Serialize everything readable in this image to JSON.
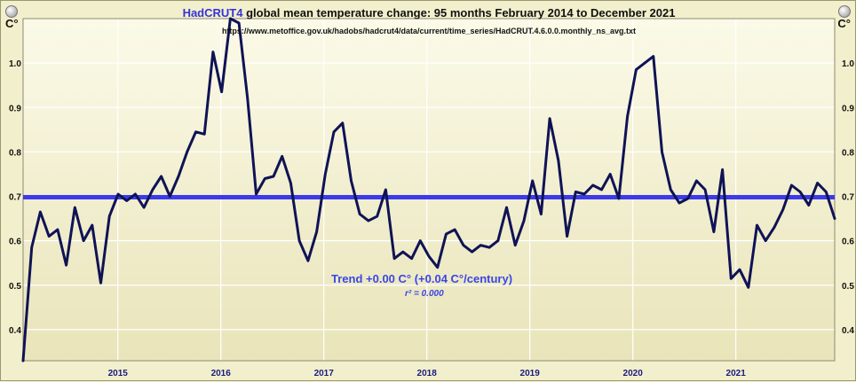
{
  "chart_data": {
    "type": "line",
    "title_brand": "HadCRUT4",
    "title_rest": "global mean temperature change: 95 months February 2014 to December 2021",
    "source_url": "https://www.metoffice.gov.uk/hadobs/hadcrut4/data/current/time_series/HadCRUT.4.6.0.0.monthly_ns_avg.txt",
    "unit_label": "C°",
    "trend_label": "Trend +0.00 C° (+0.04 C°/century)",
    "r2_label": "r² = 0.000",
    "ylim": [
      0.33,
      1.1
    ],
    "yticks": [
      "0.4",
      "0.5",
      "0.6",
      "0.7",
      "0.8",
      "0.9",
      "1.0"
    ],
    "ytick_values": [
      0.4,
      0.5,
      0.6,
      0.7,
      0.8,
      0.9,
      1.0
    ],
    "xticks": [
      "2015",
      "2016",
      "2017",
      "2018",
      "2019",
      "2020",
      "2021"
    ],
    "xtick_values": [
      2015,
      2016,
      2017,
      2018,
      2019,
      2020,
      2021
    ],
    "xlim": [
      2014.08,
      2021.96
    ],
    "trend_value": 0.698,
    "series": [
      {
        "values": [
          0.33,
          0.585,
          0.665,
          0.61,
          0.625,
          0.545,
          0.675,
          0.6,
          0.635,
          0.505,
          0.655,
          0.705,
          0.69,
          0.705,
          0.675,
          0.715,
          0.745,
          0.7,
          0.745,
          0.8,
          0.845,
          0.84,
          1.025,
          0.935,
          1.1,
          1.09,
          0.92,
          0.705,
          0.74,
          0.745,
          0.79,
          0.73,
          0.6,
          0.555,
          0.62,
          0.75,
          0.845,
          0.865,
          0.735,
          0.66,
          0.645,
          0.655,
          0.715,
          0.56,
          0.575,
          0.56,
          0.6,
          0.565,
          0.54,
          0.615,
          0.625,
          0.59,
          0.575,
          0.59,
          0.585,
          0.6,
          0.675,
          0.59,
          0.645,
          0.735,
          0.66,
          0.875,
          0.78,
          0.61,
          0.71,
          0.705,
          0.725,
          0.715,
          0.75,
          0.695,
          0.88,
          0.985,
          1.0,
          1.015,
          0.8,
          0.715,
          0.685,
          0.695,
          0.735,
          0.715,
          0.62,
          0.76,
          0.515,
          0.535,
          0.495,
          0.635,
          0.6,
          0.63,
          0.67,
          0.725,
          0.71,
          0.68,
          0.73,
          0.71,
          0.65
        ]
      }
    ]
  }
}
